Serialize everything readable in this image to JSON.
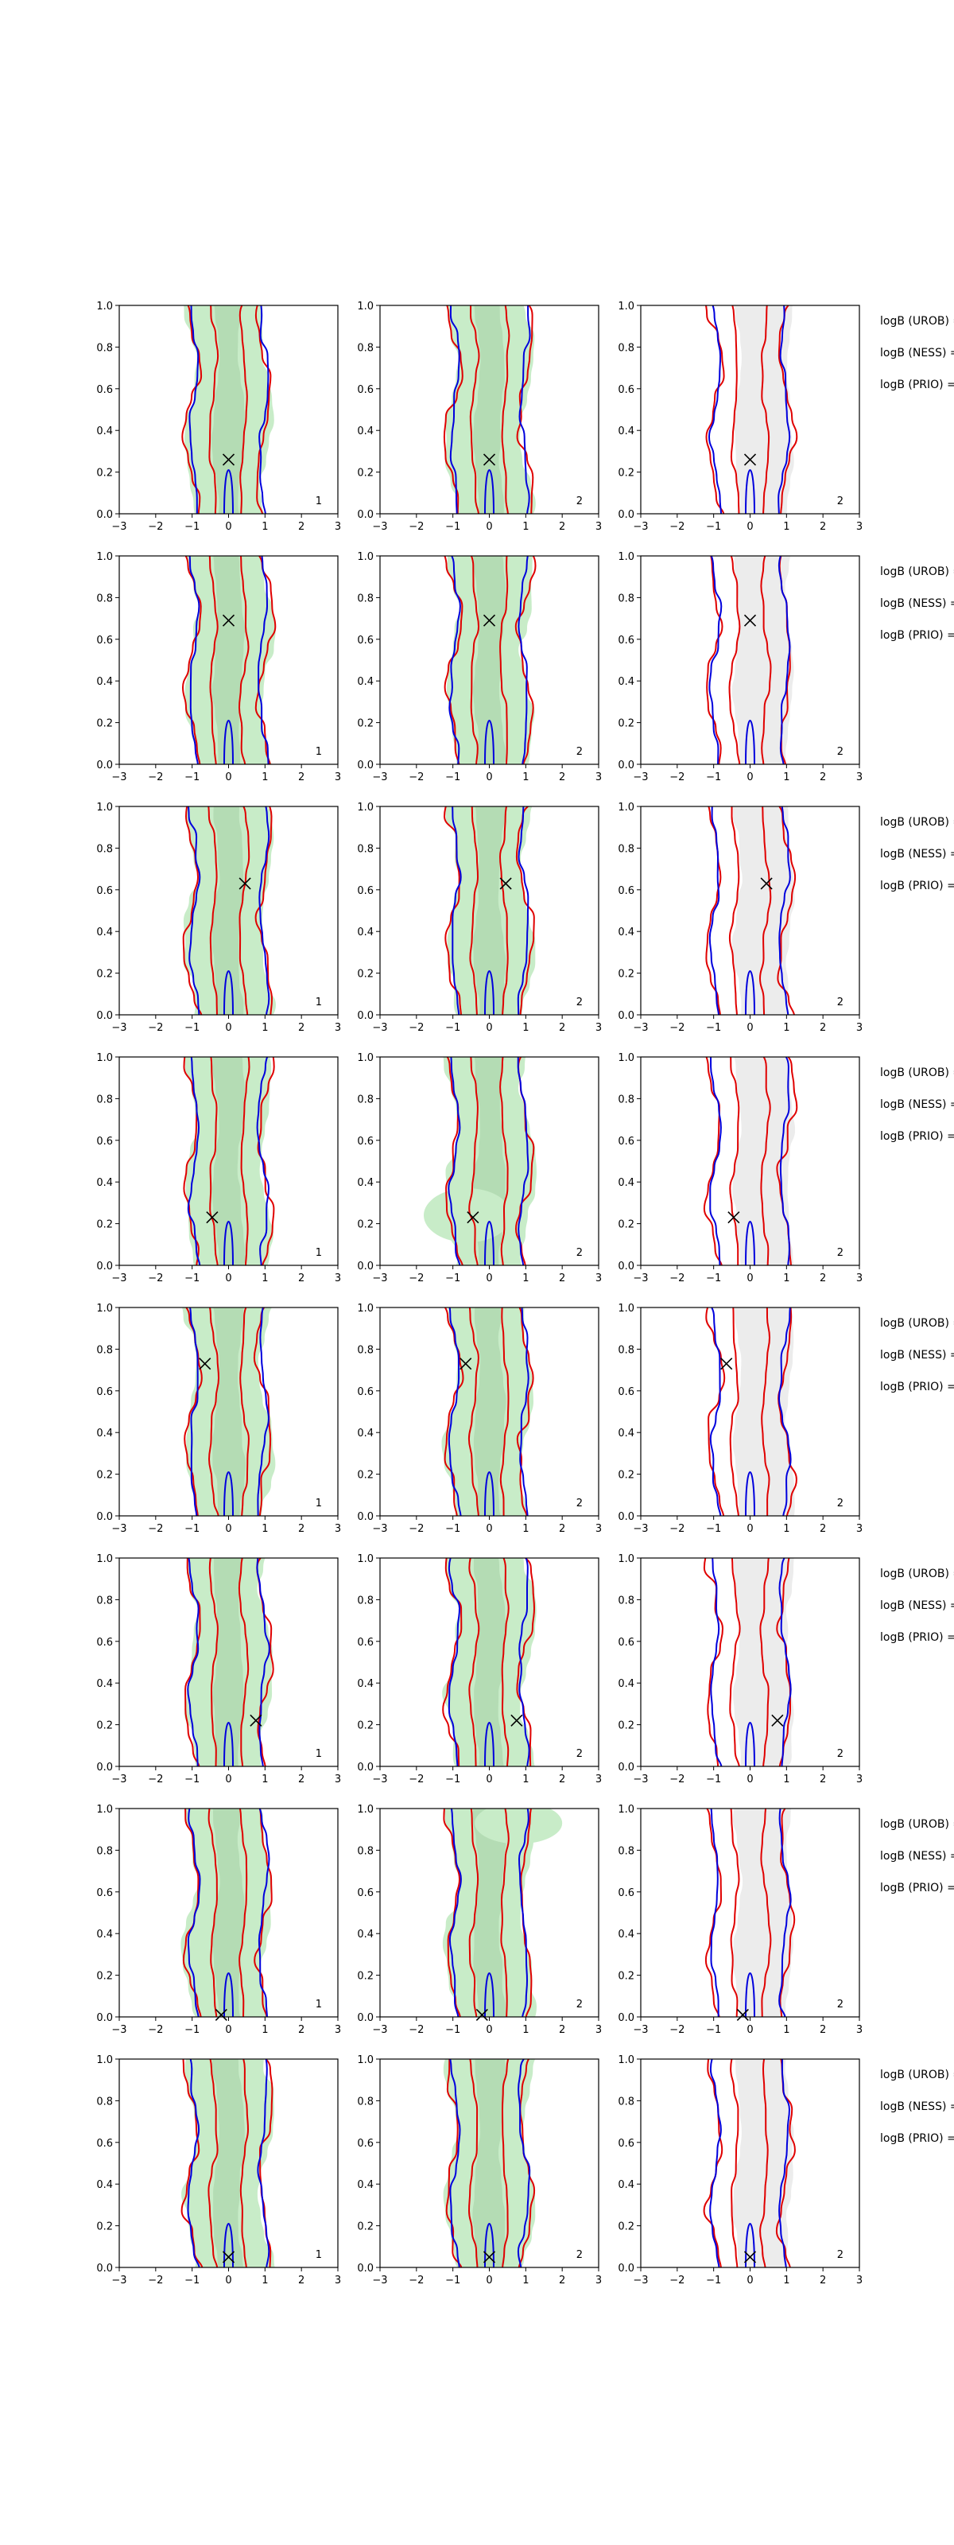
{
  "colors": {
    "green_fill": "#c8ecc8",
    "green_dark": "#b4dcb4",
    "gray_fill": "#ececec",
    "red_contour": "#e00000",
    "blue_contour": "#0000dd",
    "marker": "#000000",
    "axes": "#000000"
  },
  "chart_data": {
    "type": "contour",
    "grid_rows": 8,
    "grid_cols": 3,
    "axes": {
      "xlim": [
        -3,
        3
      ],
      "ylim": [
        0,
        1
      ],
      "xticks": [
        "−3",
        "−2",
        "−1",
        "0",
        "1",
        "2",
        "3"
      ],
      "yticks": [
        "0.0",
        "0.2",
        "0.4",
        "0.6",
        "0.8",
        "1.0"
      ]
    },
    "column_panel_labels": [
      "1",
      "2",
      "2"
    ],
    "side_labels": [
      "logB (UROB) =",
      "logB (NESS) =",
      "logB (PRIO) ="
    ],
    "markers": [
      {
        "x": 0.0,
        "y": 0.26
      },
      {
        "x": 0.0,
        "y": 0.69
      },
      {
        "x": 0.45,
        "y": 0.63
      },
      {
        "x": -0.45,
        "y": 0.23
      },
      {
        "x": -0.65,
        "y": 0.73
      },
      {
        "x": 0.75,
        "y": 0.22
      },
      {
        "x": -0.2,
        "y": 0.01
      },
      {
        "x": 0.0,
        "y": 0.05
      }
    ]
  }
}
